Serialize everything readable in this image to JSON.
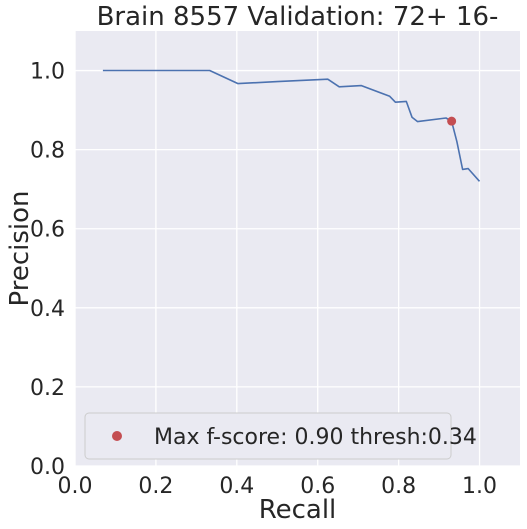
{
  "chart_data": {
    "type": "line",
    "title": "Brain 8557 Validation: 72+ 16-",
    "xlabel": "Recall",
    "ylabel": "Precision",
    "xlim": [
      0.0,
      1.1
    ],
    "ylim": [
      0.0,
      1.1
    ],
    "xticks": [
      "0.0",
      "0.2",
      "0.4",
      "0.6",
      "0.8",
      "1.0"
    ],
    "yticks": [
      "0.0",
      "0.2",
      "0.4",
      "0.6",
      "0.8",
      "1.0"
    ],
    "grid": true,
    "legend_placement": "lower-left",
    "series": [
      {
        "values": [
          [
            0.069,
            1.0
          ],
          [
            0.333,
            1.0
          ],
          [
            0.403,
            0.967
          ],
          [
            0.5,
            0.972
          ],
          [
            0.625,
            0.978
          ],
          [
            0.653,
            0.959
          ],
          [
            0.708,
            0.962
          ],
          [
            0.778,
            0.935
          ],
          [
            0.792,
            0.92
          ],
          [
            0.819,
            0.922
          ],
          [
            0.833,
            0.882
          ],
          [
            0.847,
            0.871
          ],
          [
            0.917,
            0.88
          ],
          [
            0.931,
            0.872
          ],
          [
            0.944,
            0.82
          ],
          [
            0.958,
            0.75
          ],
          [
            0.972,
            0.752
          ],
          [
            1.0,
            0.72
          ]
        ],
        "color": "#4c72b0"
      }
    ],
    "max_point": {
      "label": "Max f-score: 0.90 thresh:0.34",
      "x": 0.931,
      "y": 0.872,
      "color": "#c44e52"
    },
    "colors": {
      "plot_bg": "#eaeaf2",
      "grid": "#ffffff",
      "text": "#262626"
    }
  }
}
